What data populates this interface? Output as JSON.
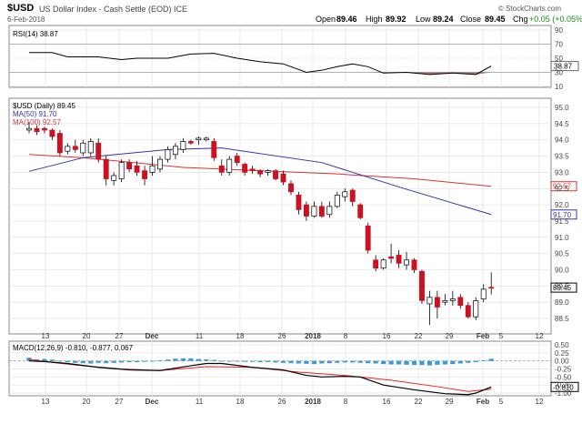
{
  "header": {
    "ticker": "$USD",
    "description": "US Dollar Index - Cash Settle (EOD) ICE",
    "date": "6-Feb-2018",
    "open_label": "Open",
    "open": "89.46",
    "high_label": "High",
    "high": "89.92",
    "low_label": "Low",
    "low": "89.24",
    "close_label": "Close",
    "close": "89.45",
    "chg_label": "Chg",
    "chg": "+0.05 (+0.05%)",
    "brand": "© StockCharts.com"
  },
  "rsi": {
    "label": "RSI(14) 38.87",
    "ticks": [
      "90",
      "70",
      "50",
      "30",
      "10"
    ],
    "current": "38.87"
  },
  "price": {
    "legend": [
      "$USD (Daily) 89.45",
      "MA(50) 91.70",
      "MA(100) 92.57"
    ],
    "ticks": [
      "95.0",
      "94.5",
      "94.0",
      "93.5",
      "93.0",
      "92.5",
      "92.0",
      "91.5",
      "91.0",
      "90.5",
      "90.0",
      "89.5",
      "89.0",
      "88.5"
    ],
    "ma100_value": "92.57",
    "ma50_value": "91.70",
    "last_value": "89.45"
  },
  "macd": {
    "label": "MACD(12,26,9) -0.810, -0.877, 0.067",
    "ticks": [
      "0.50",
      "0.25",
      "0.00",
      "-0.25",
      "-0.50",
      "-0.75",
      "-1.00"
    ],
    "macd_value": "-0.810",
    "signal_value": "-0.877",
    "hist_value": "0.067"
  },
  "x_axis": [
    "13",
    "20",
    "27",
    "Dec",
    "11",
    "18",
    "26",
    "2018",
    "8",
    "16",
    "22",
    "29",
    "Feb",
    "5",
    "12"
  ],
  "colors": {
    "up": "#ffffff",
    "down": "#cc1122",
    "ma50": "#3333aa",
    "ma100": "#dd3333",
    "macd": "#000000",
    "signal": "#ee2222",
    "hist": "#3a9ad9"
  },
  "chart_data": {
    "type": "candlestick",
    "title": "$USD US Dollar Index - Cash Settle (EOD) ICE",
    "x_start": "2017-11-09",
    "candles": [
      {
        "o": 94.3,
        "h": 94.55,
        "l": 94.2,
        "c": 94.35
      },
      {
        "o": 94.35,
        "h": 94.45,
        "l": 94.15,
        "c": 94.25
      },
      {
        "o": 94.35,
        "h": 94.4,
        "l": 94.2,
        "c": 94.3
      },
      {
        "o": 94.3,
        "h": 94.35,
        "l": 94.0,
        "c": 94.1
      },
      {
        "o": 94.2,
        "h": 94.3,
        "l": 93.5,
        "c": 93.6
      },
      {
        "o": 93.65,
        "h": 93.9,
        "l": 93.55,
        "c": 93.8
      },
      {
        "o": 93.8,
        "h": 94.0,
        "l": 93.6,
        "c": 93.7
      },
      {
        "o": 93.6,
        "h": 94.0,
        "l": 93.5,
        "c": 93.9
      },
      {
        "o": 93.6,
        "h": 94.05,
        "l": 93.5,
        "c": 93.95
      },
      {
        "o": 93.9,
        "h": 94.05,
        "l": 93.3,
        "c": 93.4
      },
      {
        "o": 93.4,
        "h": 93.5,
        "l": 92.6,
        "c": 92.8
      },
      {
        "o": 92.75,
        "h": 93.0,
        "l": 92.6,
        "c": 92.9
      },
      {
        "o": 92.8,
        "h": 93.4,
        "l": 92.7,
        "c": 93.3
      },
      {
        "o": 93.3,
        "h": 93.4,
        "l": 93.0,
        "c": 93.1
      },
      {
        "o": 93.2,
        "h": 93.35,
        "l": 92.9,
        "c": 93.0
      },
      {
        "o": 93.05,
        "h": 93.2,
        "l": 92.6,
        "c": 92.8
      },
      {
        "o": 93.0,
        "h": 93.5,
        "l": 92.9,
        "c": 93.2
      },
      {
        "o": 93.1,
        "h": 93.5,
        "l": 93.0,
        "c": 93.4
      },
      {
        "o": 93.4,
        "h": 93.8,
        "l": 93.3,
        "c": 93.7
      },
      {
        "o": 93.55,
        "h": 93.9,
        "l": 93.4,
        "c": 93.8
      },
      {
        "o": 93.7,
        "h": 94.05,
        "l": 93.6,
        "c": 93.95
      },
      {
        "o": 93.95,
        "h": 94.0,
        "l": 93.85,
        "c": 93.9
      },
      {
        "o": 94.0,
        "h": 94.1,
        "l": 93.85,
        "c": 94.05
      },
      {
        "o": 94.0,
        "h": 94.1,
        "l": 93.95,
        "c": 94.05
      },
      {
        "o": 93.95,
        "h": 94.05,
        "l": 93.35,
        "c": 93.45
      },
      {
        "o": 93.2,
        "h": 93.4,
        "l": 92.9,
        "c": 93.0
      },
      {
        "o": 93.0,
        "h": 93.5,
        "l": 92.9,
        "c": 93.4
      },
      {
        "o": 93.5,
        "h": 93.6,
        "l": 93.2,
        "c": 93.3
      },
      {
        "o": 93.25,
        "h": 93.3,
        "l": 92.9,
        "c": 93.0
      },
      {
        "o": 93.1,
        "h": 93.2,
        "l": 92.95,
        "c": 93.05
      },
      {
        "o": 93.05,
        "h": 93.1,
        "l": 92.85,
        "c": 92.95
      },
      {
        "o": 93.0,
        "h": 93.1,
        "l": 92.9,
        "c": 93.05
      },
      {
        "o": 93.05,
        "h": 93.1,
        "l": 92.75,
        "c": 92.8
      },
      {
        "o": 92.95,
        "h": 93.05,
        "l": 92.6,
        "c": 92.7
      },
      {
        "o": 92.65,
        "h": 92.75,
        "l": 92.3,
        "c": 92.4
      },
      {
        "o": 92.3,
        "h": 92.4,
        "l": 91.7,
        "c": 91.85
      },
      {
        "o": 92.0,
        "h": 92.1,
        "l": 91.5,
        "c": 91.65
      },
      {
        "o": 91.65,
        "h": 92.1,
        "l": 91.6,
        "c": 91.95
      },
      {
        "o": 91.95,
        "h": 92.1,
        "l": 91.6,
        "c": 91.65
      },
      {
        "o": 91.7,
        "h": 92.1,
        "l": 91.6,
        "c": 91.95
      },
      {
        "o": 91.95,
        "h": 92.4,
        "l": 91.9,
        "c": 92.3
      },
      {
        "o": 92.25,
        "h": 92.5,
        "l": 92.1,
        "c": 92.4
      },
      {
        "o": 92.45,
        "h": 92.5,
        "l": 91.95,
        "c": 92.1
      },
      {
        "o": 92.0,
        "h": 92.05,
        "l": 91.55,
        "c": 91.6
      },
      {
        "o": 91.35,
        "h": 91.45,
        "l": 90.5,
        "c": 90.6
      },
      {
        "o": 90.3,
        "h": 90.45,
        "l": 89.95,
        "c": 90.05
      },
      {
        "o": 90.05,
        "h": 90.35,
        "l": 90.0,
        "c": 90.3
      },
      {
        "o": 90.4,
        "h": 90.8,
        "l": 90.2,
        "c": 90.35
      },
      {
        "o": 90.45,
        "h": 90.6,
        "l": 90.05,
        "c": 90.2
      },
      {
        "o": 90.15,
        "h": 90.55,
        "l": 90.0,
        "c": 90.3
      },
      {
        "o": 90.3,
        "h": 90.35,
        "l": 89.9,
        "c": 90.0
      },
      {
        "o": 89.95,
        "h": 90.0,
        "l": 88.95,
        "c": 89.05
      },
      {
        "o": 88.95,
        "h": 89.35,
        "l": 88.3,
        "c": 89.15
      },
      {
        "o": 89.15,
        "h": 89.35,
        "l": 88.5,
        "c": 88.85
      },
      {
        "o": 89.0,
        "h": 89.25,
        "l": 88.9,
        "c": 89.05
      },
      {
        "o": 89.05,
        "h": 89.35,
        "l": 88.9,
        "c": 89.1
      },
      {
        "o": 89.15,
        "h": 89.25,
        "l": 88.8,
        "c": 88.9
      },
      {
        "o": 88.9,
        "h": 89.0,
        "l": 88.5,
        "c": 88.55
      },
      {
        "o": 88.55,
        "h": 89.15,
        "l": 88.45,
        "c": 89.05
      },
      {
        "o": 89.1,
        "h": 89.55,
        "l": 89.0,
        "c": 89.4
      },
      {
        "o": 89.46,
        "h": 89.92,
        "l": 89.24,
        "c": 89.45
      }
    ],
    "ma50": [
      [
        0,
        93.03
      ],
      [
        7,
        93.45
      ],
      [
        18,
        93.7
      ],
      [
        25,
        93.75
      ],
      [
        38,
        93.3
      ],
      [
        48,
        92.55
      ],
      [
        60,
        91.7
      ]
    ],
    "ma100": [
      [
        0,
        93.55
      ],
      [
        7,
        93.45
      ],
      [
        20,
        93.15
      ],
      [
        30,
        93.05
      ],
      [
        40,
        92.95
      ],
      [
        50,
        92.8
      ],
      [
        60,
        92.57
      ]
    ],
    "rsi": [
      [
        0,
        58
      ],
      [
        3,
        58
      ],
      [
        5,
        52
      ],
      [
        9,
        52
      ],
      [
        12,
        48
      ],
      [
        14,
        50
      ],
      [
        18,
        50
      ],
      [
        21,
        56
      ],
      [
        24,
        57
      ],
      [
        27,
        50
      ],
      [
        30,
        45
      ],
      [
        33,
        42
      ],
      [
        36,
        30
      ],
      [
        38,
        33
      ],
      [
        40,
        38
      ],
      [
        42,
        42
      ],
      [
        44,
        38
      ],
      [
        46,
        29
      ],
      [
        49,
        30
      ],
      [
        52,
        27
      ],
      [
        55,
        29
      ],
      [
        58,
        27
      ],
      [
        60,
        38.87
      ]
    ],
    "macd_line": [
      [
        0,
        0.0
      ],
      [
        2,
        -0.02
      ],
      [
        5,
        -0.08
      ],
      [
        9,
        -0.2
      ],
      [
        13,
        -0.28
      ],
      [
        17,
        -0.3
      ],
      [
        21,
        -0.15
      ],
      [
        23,
        -0.08
      ],
      [
        25,
        -0.08
      ],
      [
        29,
        -0.2
      ],
      [
        33,
        -0.28
      ],
      [
        36,
        -0.45
      ],
      [
        38,
        -0.5
      ],
      [
        41,
        -0.48
      ],
      [
        43,
        -0.5
      ],
      [
        46,
        -0.75
      ],
      [
        50,
        -0.9
      ],
      [
        54,
        -1.02
      ],
      [
        57,
        -1.05
      ],
      [
        58,
        -1.0
      ],
      [
        60,
        -0.81
      ]
    ],
    "signal_line": [
      [
        0,
        0.05
      ],
      [
        3,
        -0.05
      ],
      [
        7,
        -0.15
      ],
      [
        12,
        -0.25
      ],
      [
        17,
        -0.3
      ],
      [
        23,
        -0.18
      ],
      [
        29,
        -0.2
      ],
      [
        35,
        -0.35
      ],
      [
        41,
        -0.45
      ],
      [
        47,
        -0.6
      ],
      [
        53,
        -0.8
      ],
      [
        57,
        -0.95
      ],
      [
        60,
        -0.877
      ]
    ],
    "macd_hist": [
      0.1,
      0.05,
      0.06,
      0.04,
      0.0,
      -0.04,
      -0.06,
      -0.07,
      -0.08,
      -0.06,
      -0.07,
      -0.06,
      -0.05,
      -0.04,
      -0.04,
      -0.03,
      -0.02,
      0.02,
      0.04,
      0.07,
      0.08,
      0.08,
      0.06,
      0.05,
      0.03,
      -0.01,
      -0.02,
      -0.02,
      -0.03,
      -0.03,
      -0.04,
      -0.04,
      -0.05,
      -0.06,
      -0.07,
      -0.08,
      -0.09,
      -0.1,
      -0.08,
      -0.07,
      -0.06,
      -0.05,
      -0.05,
      -0.06,
      -0.07,
      -0.08,
      -0.1,
      -0.11,
      -0.11,
      -0.12,
      -0.13,
      -0.13,
      -0.14,
      -0.12,
      -0.11,
      -0.1,
      -0.08,
      -0.06,
      -0.04,
      0.02,
      0.067
    ]
  }
}
